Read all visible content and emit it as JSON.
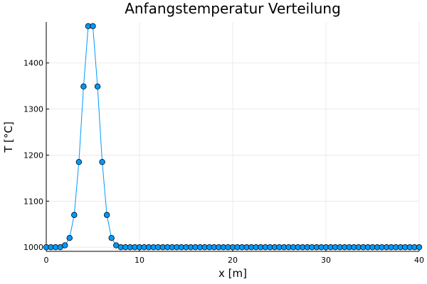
{
  "chart_data": {
    "type": "line",
    "title": "Anfangstemperatur Verteilung",
    "xlabel": "x [m]",
    "ylabel": "T [°C]",
    "xlim": [
      0,
      40
    ],
    "ylim": [
      991,
      1489
    ],
    "xticks": [
      0,
      10,
      20,
      30,
      40
    ],
    "yticks": [
      1000,
      1100,
      1200,
      1300,
      1400
    ],
    "grid": true,
    "legend": "none",
    "marker": "circle",
    "colors": {
      "series": "#009AFA",
      "marker_edge": "#000000"
    },
    "series": [
      {
        "x": [
          0,
          0.5,
          1.0,
          1.5,
          2.0,
          2.5,
          3.0,
          3.5,
          4.0,
          4.5,
          5.0,
          5.5,
          6.0,
          6.5,
          7.0,
          7.5,
          8.0,
          8.5,
          9.0,
          9.5,
          10.0,
          10.5,
          11.0,
          11.5,
          12.0,
          12.5,
          13.0,
          13.5,
          14.0,
          14.5,
          15.0,
          15.5,
          16.0,
          16.5,
          17.0,
          17.5,
          18.0,
          18.5,
          19.0,
          19.5,
          20.0,
          20.5,
          21.0,
          21.5,
          22.0,
          22.5,
          23.0,
          23.5,
          24.0,
          24.5,
          25.0,
          25.5,
          26.0,
          26.5,
          27.0,
          27.5,
          28.0,
          28.5,
          29.0,
          29.5,
          30.0,
          30.5,
          31.0,
          31.5,
          32.0,
          32.5,
          33.0,
          33.5,
          34.0,
          34.5,
          35.0,
          35.5,
          36.0,
          36.5,
          37.0,
          37.5,
          38.0,
          38.5,
          39.0,
          39.5,
          40.0
        ],
        "y": [
          1000,
          1000,
          1000,
          1000,
          1004,
          1020,
          1070,
          1185,
          1349,
          1480,
          1480,
          1349,
          1185,
          1070,
          1020,
          1004,
          1000,
          1000,
          1000,
          1000,
          1000,
          1000,
          1000,
          1000,
          1000,
          1000,
          1000,
          1000,
          1000,
          1000,
          1000,
          1000,
          1000,
          1000,
          1000,
          1000,
          1000,
          1000,
          1000,
          1000,
          1000,
          1000,
          1000,
          1000,
          1000,
          1000,
          1000,
          1000,
          1000,
          1000,
          1000,
          1000,
          1000,
          1000,
          1000,
          1000,
          1000,
          1000,
          1000,
          1000,
          1000,
          1000,
          1000,
          1000,
          1000,
          1000,
          1000,
          1000,
          1000,
          1000,
          1000,
          1000,
          1000,
          1000,
          1000,
          1000,
          1000,
          1000,
          1000,
          1000,
          1000
        ]
      }
    ]
  }
}
